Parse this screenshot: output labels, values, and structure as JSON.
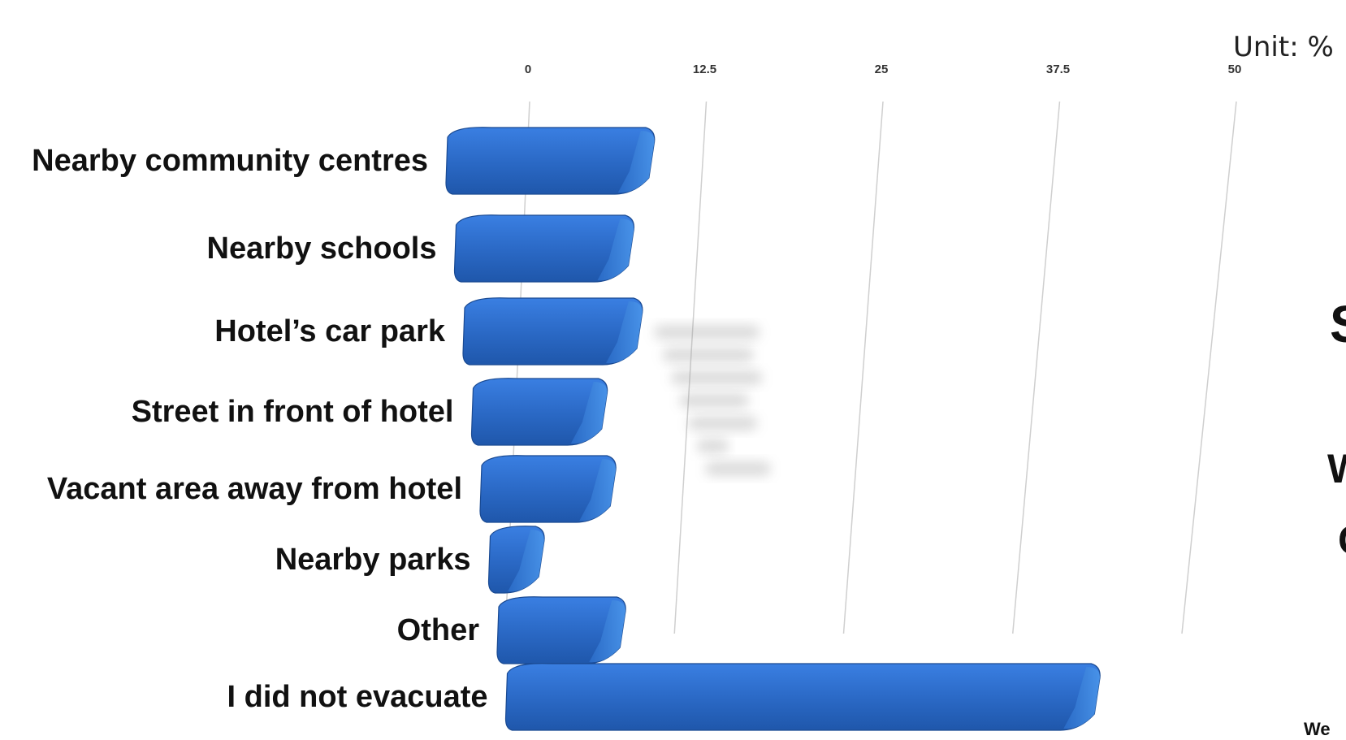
{
  "unit_label": "Unit: %",
  "side_text": [
    "S",
    "W",
    "C",
    "We"
  ],
  "colors": {
    "bar": "#2a68c4",
    "bar_top": "#3b7ee0",
    "bar_dark": "#1d4f9c",
    "grid": "#cfcfcf"
  },
  "chart_data": {
    "type": "bar",
    "orientation": "horizontal",
    "title": "",
    "xlabel": "",
    "ylabel": "",
    "xlim": [
      0,
      50
    ],
    "ticks": [
      "0",
      "12.5",
      "25",
      "37.5",
      "50"
    ],
    "tick_values": [
      0,
      12.5,
      25,
      37.5,
      50
    ],
    "grid": true,
    "categories": [
      "Nearby community centres",
      "Nearby schools",
      "Hotel’s car park",
      "Street in front of hotel",
      "Vacant area away from hotel",
      "Nearby parks",
      "Other",
      "I did not evacuate"
    ],
    "values": [
      14.5,
      12.5,
      12.5,
      9.5,
      9.5,
      4,
      9,
      41
    ]
  }
}
